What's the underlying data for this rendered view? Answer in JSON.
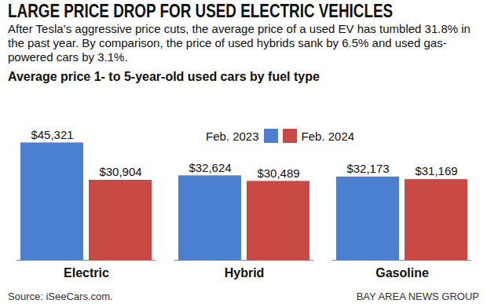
{
  "chart_data": {
    "type": "bar",
    "title": "LARGE PRICE DROP FOR USED ELECTRIC VEHICLES",
    "subtitle": "After Tesla’s aggressive price cuts, the average price of a used EV has tumbled 31.8% in the past year. By comparison, the price of used hybrids sank by 6.5% and used gas-powered cars by 3.1%.",
    "heading": "Average price 1- to 5-year-old used cars by fuel type",
    "source": "Source: iSeeCars.com.",
    "credit": "BAY AREA NEWS GROUP",
    "categories": [
      "Electric",
      "Hybrid",
      "Gasoline"
    ],
    "series": [
      {
        "name": "Feb. 2023",
        "color": "#4a80cf",
        "values": [
          45321,
          32624,
          32173
        ],
        "value_labels": [
          "$45,321",
          "$32,624",
          "$32,173"
        ]
      },
      {
        "name": "Feb. 2024",
        "color": "#c94a45",
        "values": [
          30904,
          30489,
          31169
        ],
        "value_labels": [
          "$30,904",
          "$30,489",
          "$31,169"
        ]
      }
    ],
    "ylim": [
      0,
      50000
    ],
    "legend": "top",
    "data_labels": true,
    "tick_labels": "x"
  }
}
